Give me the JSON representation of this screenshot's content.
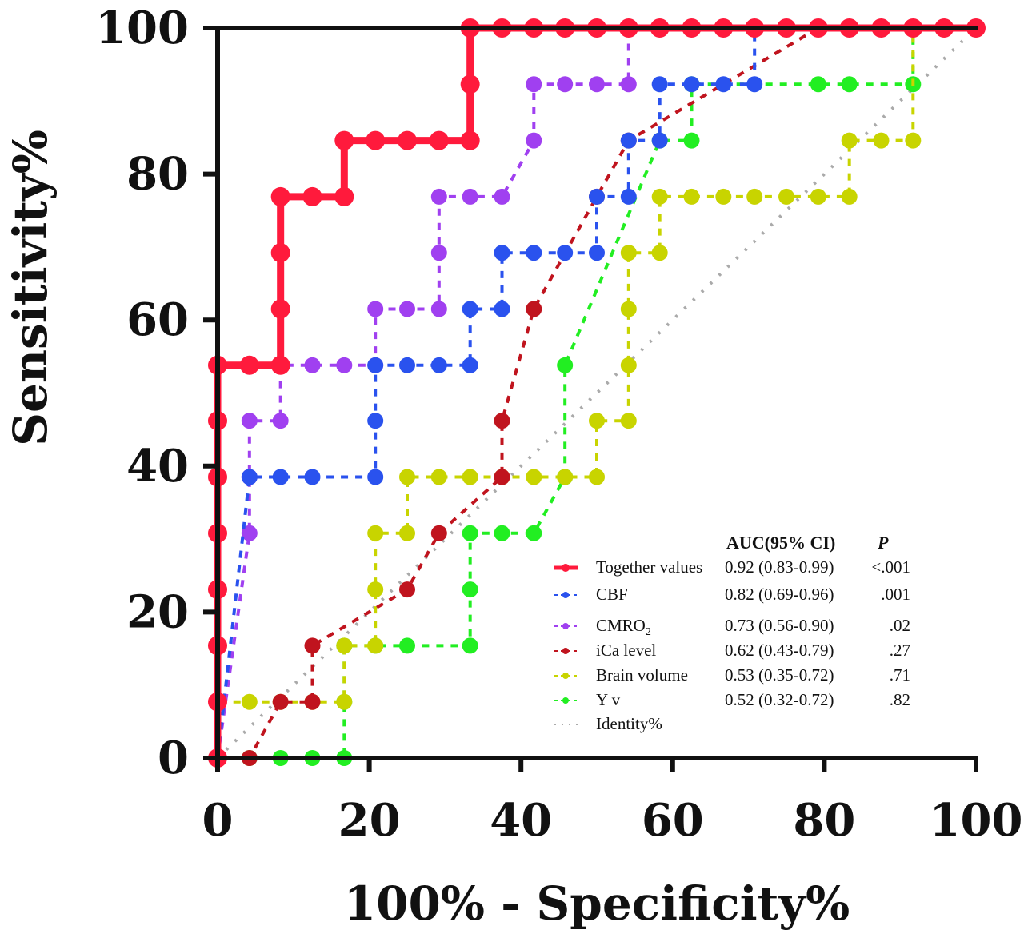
{
  "chart_data": {
    "type": "line",
    "title": "",
    "xlabel": "100% - Specificity%",
    "ylabel": "Sensitivity%",
    "xlim": [
      0,
      100
    ],
    "ylim": [
      0,
      100
    ],
    "xticks": [
      "0",
      "20",
      "40",
      "60",
      "80",
      "100"
    ],
    "yticks": [
      "0",
      "20",
      "40",
      "60",
      "80",
      "100"
    ],
    "grid": false,
    "legend_position": "bottom-right",
    "legend_header": {
      "auc": "AUC(95% CI)",
      "p": "P"
    },
    "series": [
      {
        "name": "Together values",
        "auc": "0.92 (0.83-0.99)",
        "p": "<.001",
        "color": "#ff1a3c",
        "style": "solid",
        "x": [
          0,
          0,
          0,
          0,
          0,
          0,
          0,
          0,
          4.2,
          8.3,
          8.3,
          8.3,
          8.3,
          12.5,
          16.7,
          16.7,
          20.8,
          25,
          29.2,
          33.3,
          33.3,
          33.3,
          37.5,
          41.7,
          45.8,
          50,
          54.2,
          58.3,
          62.5,
          66.7,
          70.8,
          75,
          79.2,
          83.3,
          87.5,
          91.7,
          95.8,
          100
        ],
        "y": [
          0,
          7.7,
          15.4,
          23.1,
          30.8,
          38.5,
          46.2,
          53.8,
          53.8,
          53.8,
          61.5,
          69.2,
          76.9,
          76.9,
          76.9,
          84.6,
          84.6,
          84.6,
          84.6,
          84.6,
          92.3,
          100,
          100,
          100,
          100,
          100,
          100,
          100,
          100,
          100,
          100,
          100,
          100,
          100,
          100,
          100,
          100,
          100
        ]
      },
      {
        "name": "CBF",
        "auc": "0.82 (0.69-0.96)",
        "p": ".001",
        "color": "#2a52ee",
        "style": "dashed",
        "x": [
          0,
          4.2,
          8.3,
          12.5,
          20.8,
          20.8,
          20.8,
          25,
          29.2,
          33.3,
          33.3,
          37.5,
          37.5,
          41.7,
          45.8,
          50,
          50,
          54.2,
          54.2,
          58.3,
          58.3,
          62.5,
          66.7,
          70.8,
          70.8,
          100
        ],
        "y": [
          0,
          38.5,
          38.5,
          38.5,
          38.5,
          46.2,
          53.8,
          53.8,
          53.8,
          53.8,
          61.5,
          61.5,
          69.2,
          69.2,
          69.2,
          69.2,
          76.9,
          76.9,
          84.6,
          84.6,
          92.3,
          92.3,
          92.3,
          92.3,
          100,
          100
        ]
      },
      {
        "name": "CMRO2",
        "auc": "0.73 (0.56-0.90)",
        "p": ".02",
        "color": "#a040f0",
        "style": "dashed",
        "x": [
          0,
          4.2,
          4.2,
          4.2,
          8.3,
          8.3,
          12.5,
          16.7,
          20.8,
          20.8,
          25,
          29.2,
          29.2,
          29.2,
          33.3,
          37.5,
          41.7,
          41.7,
          45.8,
          50,
          54.2,
          54.2,
          100
        ],
        "y": [
          0,
          30.8,
          38.5,
          46.2,
          46.2,
          53.8,
          53.8,
          53.8,
          53.8,
          61.5,
          61.5,
          61.5,
          69.2,
          76.9,
          76.9,
          76.9,
          84.6,
          92.3,
          92.3,
          92.3,
          92.3,
          100,
          100
        ]
      },
      {
        "name": "iCa level",
        "auc": "0.62 (0.43-0.79)",
        "p": ".27",
        "color": "#c0141e",
        "style": "dashed",
        "x": [
          0,
          4.2,
          8.3,
          12.5,
          12.5,
          25,
          29.2,
          37.5,
          37.5,
          41.7,
          50,
          54.2,
          79.2,
          100
        ],
        "y": [
          0,
          0,
          7.7,
          7.7,
          15.4,
          23.1,
          30.8,
          38.5,
          46.2,
          61.5,
          76.9,
          84.6,
          100,
          100
        ]
      },
      {
        "name": "Brain volume",
        "auc": "0.53 (0.35-0.72)",
        "p": ".71",
        "color": "#c8d400",
        "style": "dashed",
        "x": [
          0,
          0,
          4.2,
          8.3,
          12.5,
          16.7,
          16.7,
          20.8,
          20.8,
          20.8,
          25,
          25,
          29.2,
          33.3,
          37.5,
          41.7,
          45.8,
          50,
          50,
          54.2,
          54.2,
          54.2,
          54.2,
          58.3,
          58.3,
          62.5,
          66.7,
          70.8,
          75,
          79.2,
          83.3,
          83.3,
          87.5,
          91.7,
          91.7,
          95.8,
          100
        ],
        "y": [
          0,
          7.7,
          7.7,
          7.7,
          7.7,
          7.7,
          15.4,
          15.4,
          23.1,
          30.8,
          30.8,
          38.5,
          38.5,
          38.5,
          38.5,
          38.5,
          38.5,
          38.5,
          46.2,
          46.2,
          53.8,
          61.5,
          69.2,
          69.2,
          76.9,
          76.9,
          76.9,
          76.9,
          76.9,
          76.9,
          76.9,
          84.6,
          84.6,
          84.6,
          100,
          100,
          100
        ]
      },
      {
        "name": "Y v",
        "auc": "0.52 (0.32-0.72)",
        "p": ".82",
        "color": "#22ee22",
        "style": "dashed",
        "x": [
          0,
          4.2,
          8.3,
          12.5,
          16.7,
          16.7,
          16.7,
          20.8,
          25,
          33.3,
          33.3,
          33.3,
          37.5,
          41.7,
          45.8,
          45.8,
          58.3,
          62.5,
          62.5,
          79.2,
          83.3,
          91.7,
          91.7,
          100
        ],
        "y": [
          0,
          0,
          0,
          0,
          0,
          7.7,
          15.4,
          15.4,
          15.4,
          15.4,
          23.1,
          30.8,
          30.8,
          30.8,
          38.5,
          53.8,
          84.6,
          84.6,
          92.3,
          92.3,
          92.3,
          92.3,
          100,
          100
        ]
      },
      {
        "name": "Identity%",
        "color": "#aaaaaa",
        "style": "dotted",
        "x": [
          0,
          100
        ],
        "y": [
          0,
          100
        ]
      }
    ]
  }
}
